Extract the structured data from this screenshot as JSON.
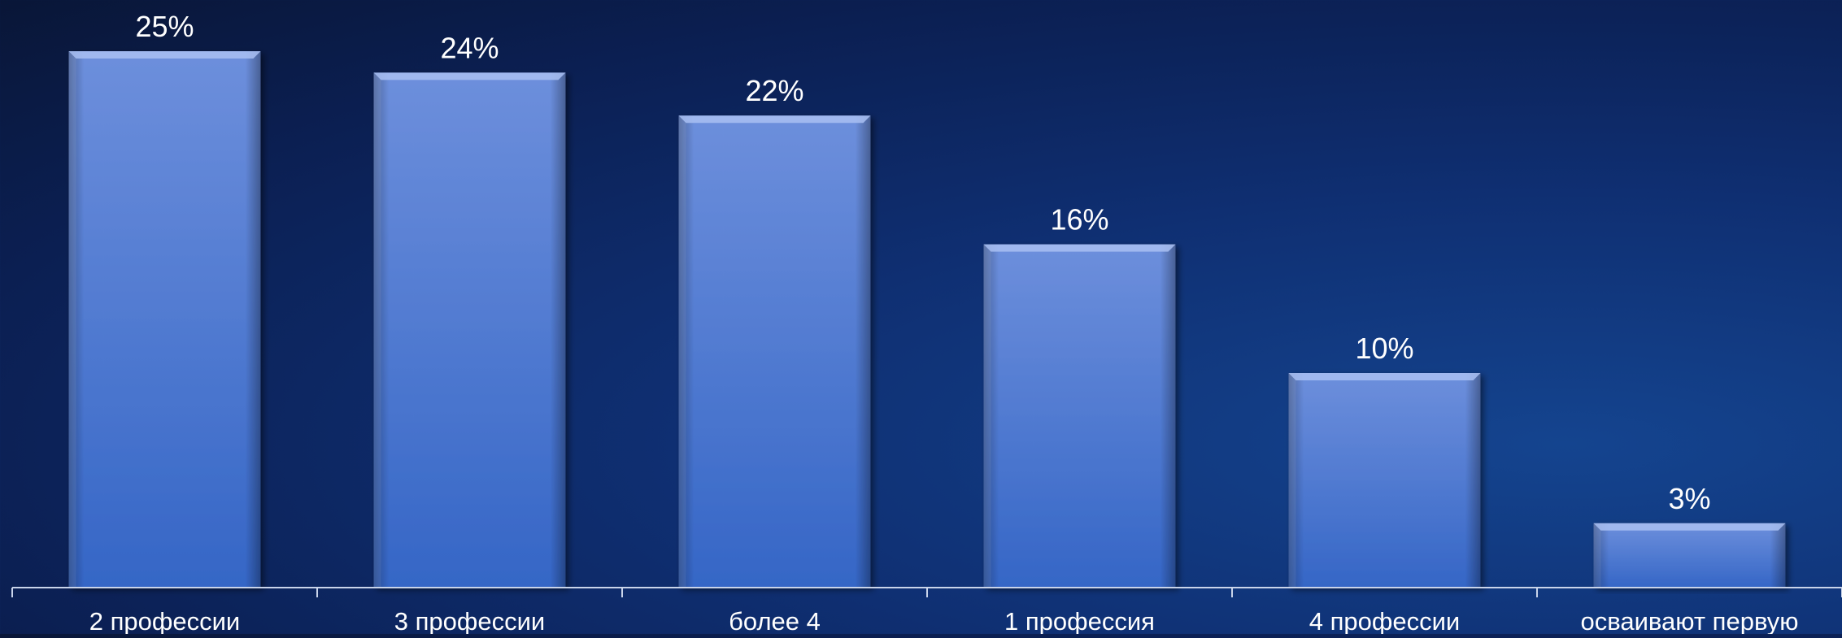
{
  "chart_data": {
    "type": "bar",
    "categories": [
      "2 профессии",
      "3 профессии",
      "более 4",
      "1 профессия",
      "4 профессии",
      "осваивают первую"
    ],
    "values": [
      25,
      24,
      22,
      16,
      10,
      3
    ],
    "value_labels": [
      "25%",
      "24%",
      "22%",
      "16%",
      "10%",
      "3%"
    ],
    "unit": "%",
    "ylim": [
      0,
      25
    ],
    "grid": false,
    "legend": "none",
    "colors": {
      "bar_top": "#6d8fdc",
      "bar_bottom": "#3566c6",
      "bar_bevel": "#a9c0f2",
      "axis": "#c9d4ea",
      "text": "#ffffff"
    }
  }
}
